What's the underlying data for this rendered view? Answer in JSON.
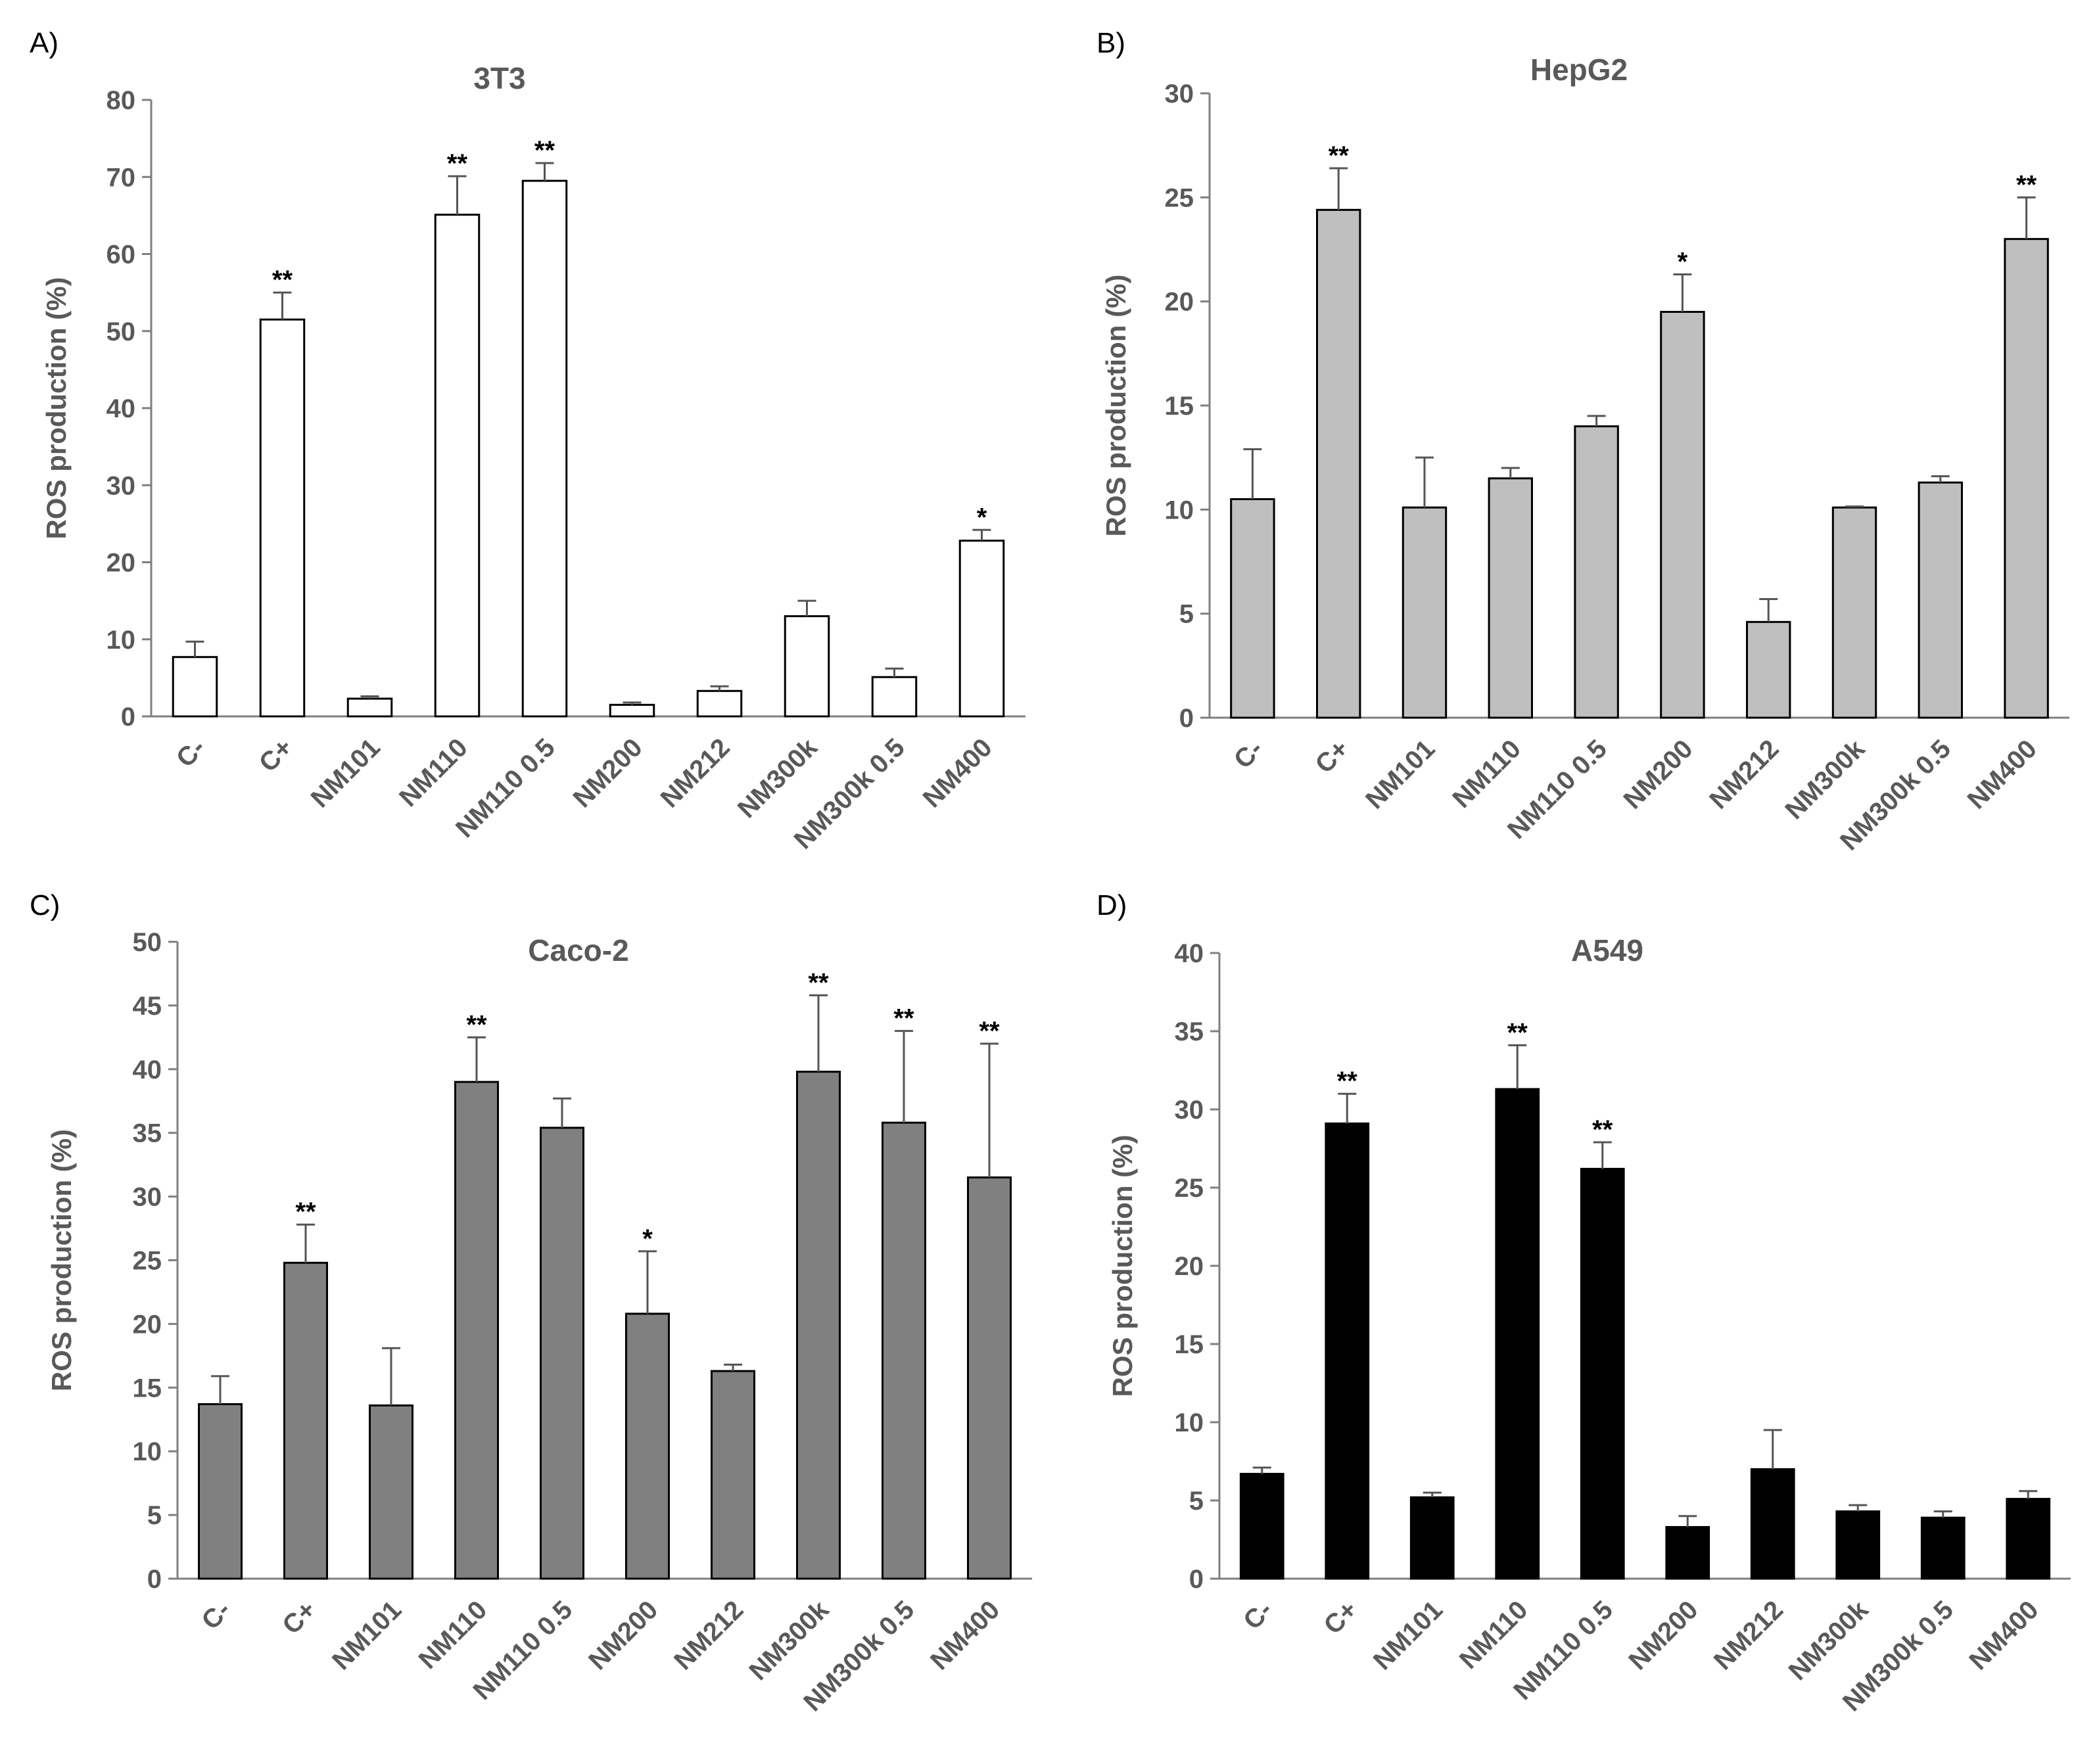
{
  "chart_data": [
    {
      "panel": "A)",
      "type": "bar",
      "title": "3T3",
      "ylabel": "ROS production (%)",
      "ylim": [
        0,
        80
      ],
      "yticks": [
        0,
        10,
        20,
        30,
        40,
        50,
        60,
        70,
        80
      ],
      "categories": [
        "C-",
        "C+",
        "NM101",
        "NM110",
        "NM110 0.5",
        "NM200",
        "NM212",
        "NM300k",
        "NM300k 0.5",
        "NM400"
      ],
      "values": [
        7.7,
        51.5,
        2.3,
        65.1,
        69.5,
        1.5,
        3.3,
        13.0,
        5.1,
        22.8
      ],
      "errors": [
        2.0,
        3.5,
        0.3,
        5.0,
        2.3,
        0.3,
        0.6,
        2.0,
        1.1,
        1.4
      ],
      "significance": [
        "",
        "**",
        "",
        "**",
        "**",
        "",
        "",
        "",
        "",
        "*"
      ],
      "bar_color": "#ffffff"
    },
    {
      "panel": "B)",
      "type": "bar",
      "title": "HepG2",
      "ylabel": "ROS production (%)",
      "ylim": [
        0,
        30
      ],
      "yticks": [
        0,
        5,
        10,
        15,
        20,
        25,
        30
      ],
      "categories": [
        "C-",
        "C+",
        "NM101",
        "NM110",
        "NM110 0.5",
        "NM200",
        "NM212",
        "NM300k",
        "NM300k 0.5",
        "NM400"
      ],
      "values": [
        10.5,
        24.4,
        10.1,
        11.5,
        14.0,
        19.5,
        4.6,
        10.1,
        11.3,
        23.0
      ],
      "errors": [
        2.4,
        2.0,
        2.4,
        0.5,
        0.5,
        1.8,
        1.1,
        0.05,
        0.3,
        2.0
      ],
      "significance": [
        "",
        "**",
        "",
        "",
        "",
        "*",
        "",
        "",
        "",
        "**"
      ],
      "bar_color": "#bfbfbf"
    },
    {
      "panel": "C)",
      "type": "bar",
      "title": "Caco-2",
      "ylabel": "ROS production (%)",
      "ylim": [
        0,
        50
      ],
      "yticks": [
        0,
        5,
        10,
        15,
        20,
        25,
        30,
        35,
        40,
        45,
        50
      ],
      "categories": [
        "C-",
        "C+",
        "NM101",
        "NM110",
        "NM110 0.5",
        "NM200",
        "NM212",
        "NM300k",
        "NM300k 0.5",
        "NM400"
      ],
      "values": [
        13.7,
        24.8,
        13.6,
        39.0,
        35.4,
        20.8,
        16.3,
        39.8,
        35.8,
        31.5
      ],
      "errors": [
        2.2,
        3.0,
        4.5,
        3.5,
        2.3,
        4.9,
        0.5,
        6.0,
        7.2,
        10.5
      ],
      "significance": [
        "",
        "**",
        "",
        "**",
        "",
        "*",
        "",
        "**",
        "**",
        "**"
      ],
      "bar_color": "#808080"
    },
    {
      "panel": "D)",
      "type": "bar",
      "title": "A549",
      "ylabel": "ROS production (%)",
      "ylim": [
        0,
        40
      ],
      "yticks": [
        0,
        5,
        10,
        15,
        20,
        25,
        30,
        35,
        40
      ],
      "categories": [
        "C-",
        "C+",
        "NM101",
        "NM110",
        "NM110 0.5",
        "NM200",
        "NM212",
        "NM300k",
        "NM300k 0.5",
        "NM400"
      ],
      "values": [
        6.7,
        29.1,
        5.2,
        31.3,
        26.2,
        3.3,
        7.0,
        4.3,
        3.9,
        5.1
      ],
      "errors": [
        0.4,
        1.9,
        0.3,
        2.8,
        1.7,
        0.7,
        2.5,
        0.4,
        0.4,
        0.5
      ],
      "significance": [
        "",
        "**",
        "",
        "**",
        "**",
        "",
        "",
        "",
        "",
        ""
      ],
      "bar_color": "#000000"
    }
  ]
}
